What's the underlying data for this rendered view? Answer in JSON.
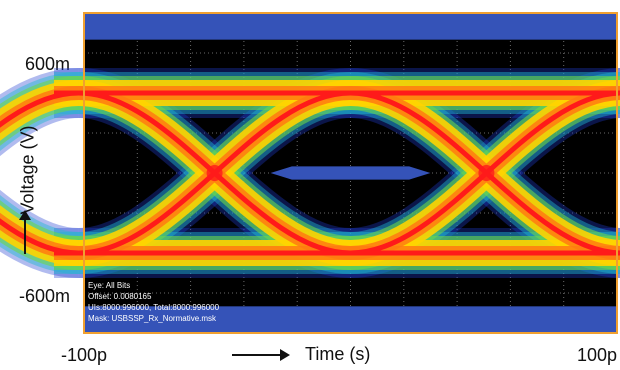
{
  "chart_data": {
    "type": "heatmap",
    "subtype": "eye-diagram",
    "xlabel": "Time (s)",
    "ylabel": "Voltage (V)",
    "x_ticks": [
      "-100p",
      "100p"
    ],
    "y_ticks": [
      "600m",
      "-600m"
    ],
    "xlim": [
      -100,
      100
    ],
    "ylim": [
      -600,
      600
    ],
    "x_unit": "ps",
    "y_unit": "mV",
    "grid": true,
    "levels_mV": {
      "high": 300,
      "low": -300
    },
    "crossing_times_ps": [
      -51,
      51
    ],
    "mask_polygon": [
      [
        -30,
        0
      ],
      [
        -22,
        25
      ],
      [
        22,
        25
      ],
      [
        30,
        0
      ],
      [
        22,
        -25
      ],
      [
        -22,
        -25
      ]
    ],
    "mask_limits_mV": {
      "upper": 500,
      "lower": -500
    },
    "info_lines": [
      "Eye: All Bits",
      "Offset: 0.0080165",
      "UIs:8000:996000, Total:8000:996000",
      "Mask: USBSSP_Rx_Normative.msk"
    ],
    "colors": {
      "background": "#000000",
      "mask": "#3553b8",
      "border": "#f0a030",
      "grid": "#6a6a6a",
      "heat_outer": "#1f3bd0",
      "heat_mid": "#ffd400",
      "heat_inner": "#ff1a1a"
    }
  }
}
